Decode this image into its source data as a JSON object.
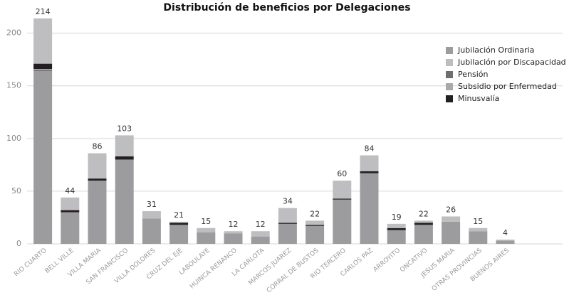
{
  "chart_data": {
    "type": "stacked_bar",
    "title": "Distribución de beneficios por Delegaciones",
    "categories": [
      "RIO CUARTO",
      "BELL VILLE",
      "VILLA MARIA",
      "SAN FRANCISCO",
      "VILLA DOLORES",
      "CRUZ DEL EJE",
      "LABOULAYE",
      "HUINCA RENANCO",
      "LA CARLOTA",
      "MARCOS JUAREZ",
      "CORRAL DE BUSTOS",
      "RIO TERCERO",
      "CARLOS PAZ",
      "ARROYITO",
      "ONCATIVO",
      "JESUS MARIA",
      "OTRAS PROVINCIAS",
      "BUENOS AIRES"
    ],
    "series": [
      {
        "name": "Jubilación Ordinaria",
        "color": "#9c9c9e",
        "values": [
          164,
          30,
          60,
          80,
          24,
          18,
          11,
          10,
          7,
          19,
          17,
          42,
          67,
          13,
          18,
          21,
          12,
          3
        ]
      },
      {
        "name": "Pensión",
        "color": "#6e6e70",
        "values": [
          1,
          0,
          0,
          0,
          0,
          0,
          0,
          0,
          0,
          0,
          0,
          0,
          0,
          0,
          0,
          0,
          0,
          0
        ]
      },
      {
        "name": "Subsidio por Enfermedad",
        "color": "#a9a9ab",
        "values": [
          1,
          0,
          0,
          0,
          0,
          0,
          0,
          0,
          0,
          0,
          0,
          0,
          0,
          0,
          0,
          0,
          0,
          0
        ]
      },
      {
        "name": "Minusvalía",
        "color": "#231f20",
        "values": [
          5,
          2,
          2,
          3,
          0,
          2,
          0,
          0,
          0,
          1,
          1,
          1,
          2,
          2,
          2,
          0,
          0,
          0
        ]
      },
      {
        "name": "Jubilación por Discapacidad",
        "color": "#bebec0",
        "values": [
          43,
          12,
          24,
          20,
          7,
          1,
          4,
          2,
          5,
          14,
          4,
          17,
          15,
          4,
          2,
          5,
          3,
          1
        ]
      }
    ],
    "legend_order": [
      0,
      4,
      1,
      2,
      3
    ],
    "total_labels": [
      214,
      44,
      86,
      103,
      31,
      21,
      15,
      12,
      12,
      34,
      22,
      60,
      84,
      19,
      22,
      26,
      15,
      4
    ],
    "ylim": [
      0,
      220
    ],
    "yticks": [
      0,
      50,
      100,
      150,
      200
    ],
    "grid": true,
    "legend": "upper right"
  }
}
